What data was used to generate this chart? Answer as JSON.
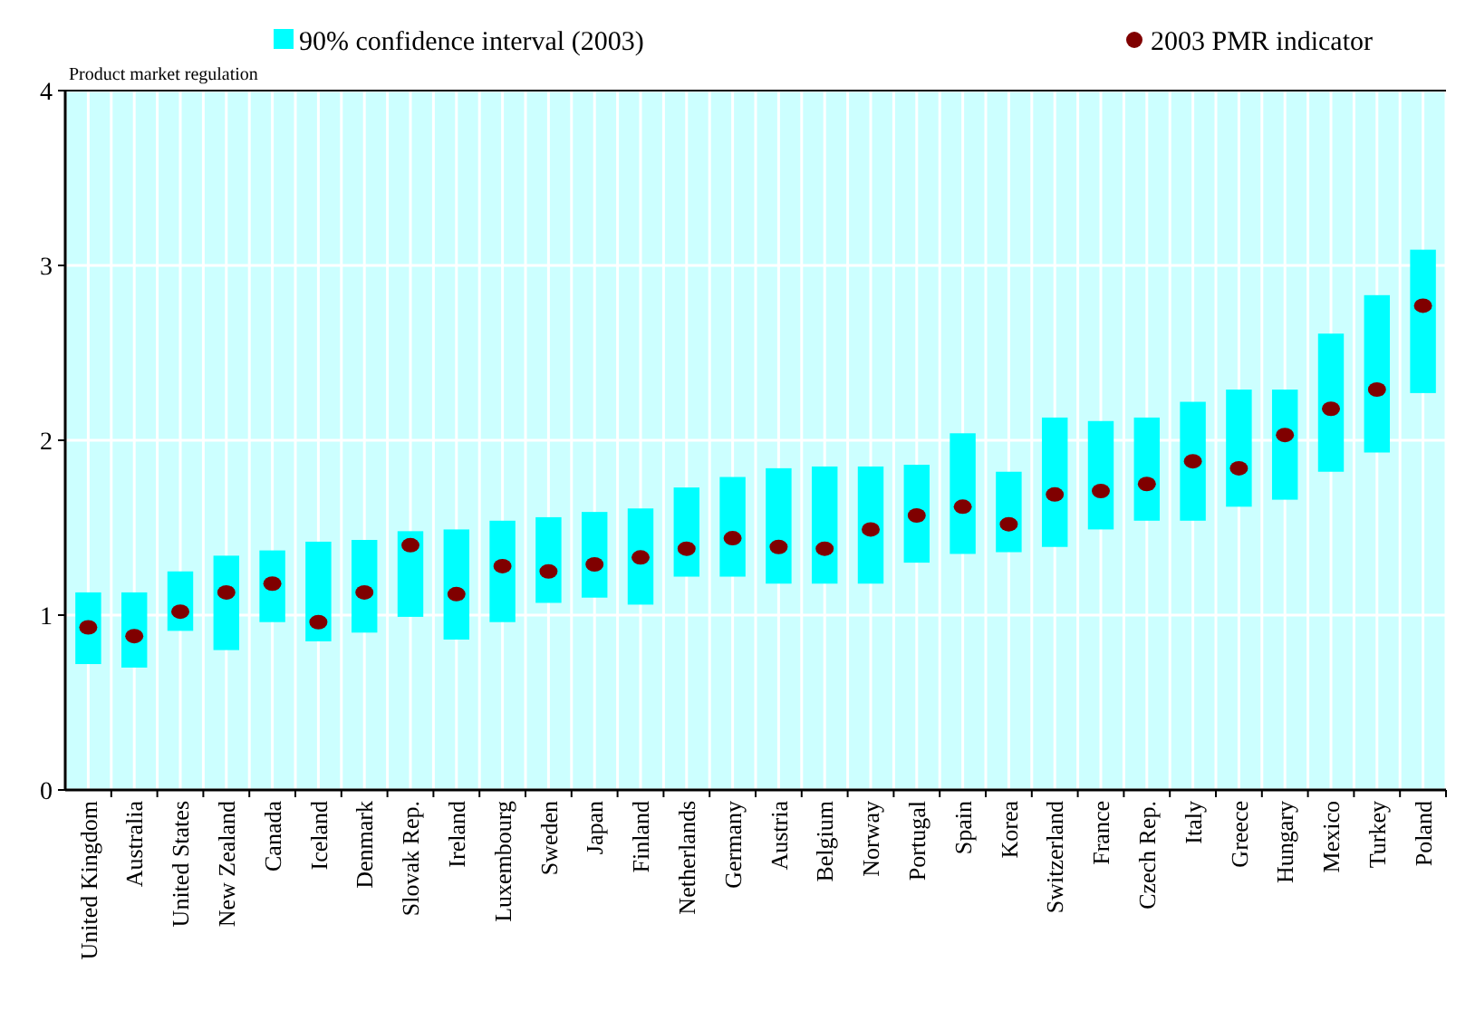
{
  "chart_data": {
    "type": "bar",
    "ylabel": "Product market regulation",
    "categories": [
      "United Kingdom",
      "Australia",
      "United States",
      "New Zealand",
      "Canada",
      "Iceland",
      "Denmark",
      "Slovak Rep.",
      "Ireland",
      "Luxembourg",
      "Sweden",
      "Japan",
      "Finland",
      "Netherlands",
      "Germany",
      "Austria",
      "Belgium",
      "Norway",
      "Portugal",
      "Spain",
      "Korea",
      "Switzerland",
      "France",
      "Czech Rep.",
      "Italy",
      "Greece",
      "Hungary",
      "Mexico",
      "Turkey",
      "Poland"
    ],
    "series": [
      {
        "name": "90% confidence interval (2003)",
        "color": "#00ffff",
        "base": [
          0.72,
          0.7,
          0.91,
          0.8,
          0.96,
          0.85,
          0.9,
          0.99,
          0.86,
          0.96,
          1.07,
          1.1,
          1.06,
          1.22,
          1.22,
          1.18,
          1.18,
          1.18,
          1.3,
          1.35,
          1.36,
          1.39,
          1.49,
          1.54,
          1.54,
          1.62,
          1.66,
          1.82,
          1.93,
          2.27
        ],
        "values": [
          0.41,
          0.43,
          0.34,
          0.54,
          0.41,
          0.57,
          0.53,
          0.49,
          0.63,
          0.58,
          0.49,
          0.49,
          0.55,
          0.51,
          0.57,
          0.66,
          0.67,
          0.67,
          0.56,
          0.69,
          0.46,
          0.74,
          0.62,
          0.59,
          0.68,
          0.67,
          0.63,
          0.79,
          0.9,
          0.82
        ]
      },
      {
        "name": "2003 PMR indicator",
        "type": "scatter",
        "color": "#800000",
        "values": [
          0.93,
          0.88,
          1.02,
          1.13,
          1.18,
          0.96,
          1.13,
          1.4,
          1.12,
          1.28,
          1.25,
          1.29,
          1.33,
          1.38,
          1.44,
          1.39,
          1.38,
          1.49,
          1.57,
          1.62,
          1.52,
          1.69,
          1.71,
          1.75,
          1.88,
          1.84,
          2.03,
          2.18,
          2.29,
          2.77
        ]
      }
    ],
    "ylim": [
      0,
      4
    ],
    "yticks": [
      0,
      1,
      2,
      3,
      4
    ],
    "grid": true,
    "legend": "top",
    "marker": "circle"
  }
}
